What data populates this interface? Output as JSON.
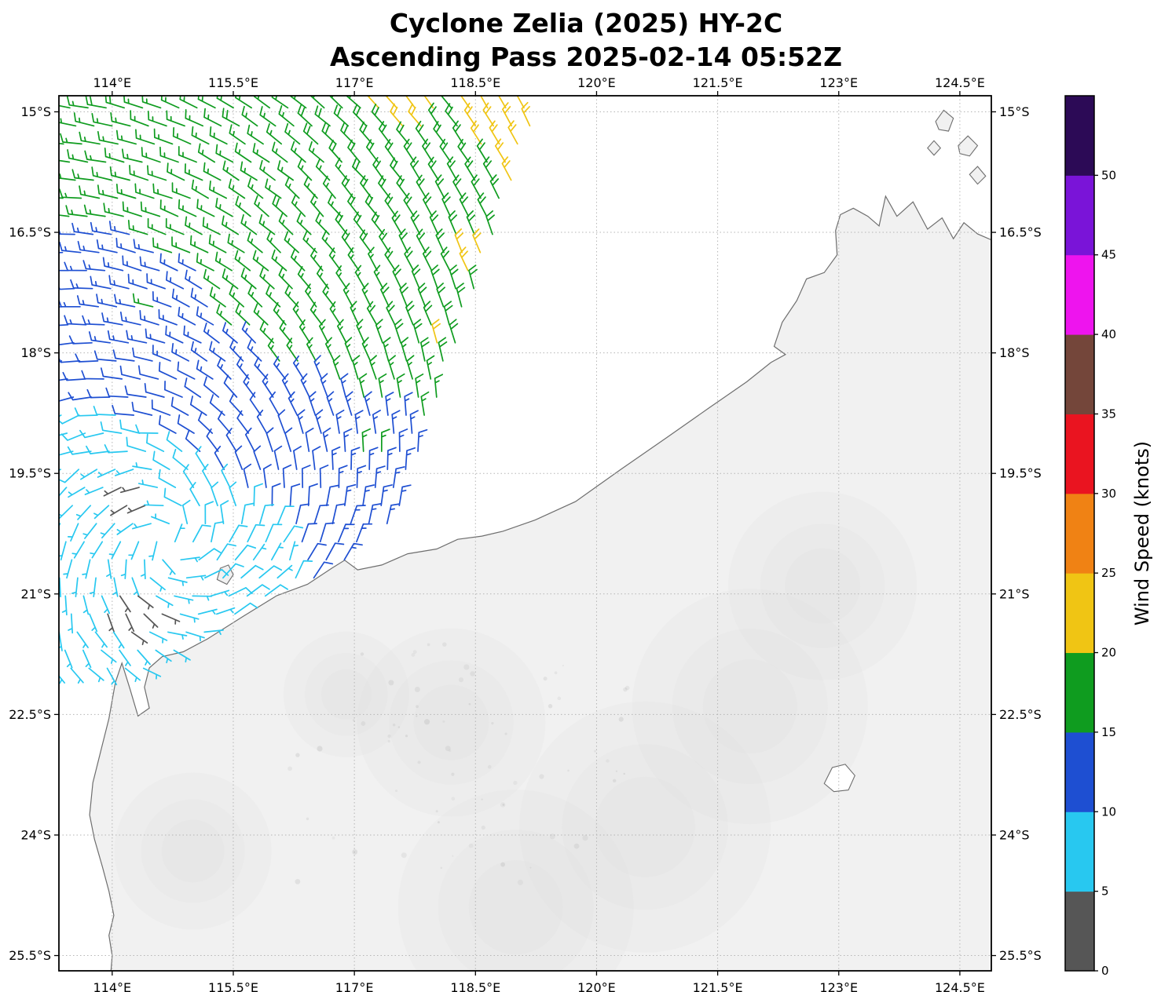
{
  "title": {
    "line1": "Cyclone Zelia (2025) HY-2C",
    "line2": "Ascending Pass 2025-02-14 05:52Z"
  },
  "axes": {
    "lon_range": [
      113.34,
      124.89
    ],
    "lat_range": [
      14.8,
      25.69
    ],
    "lon_ticks": [
      {
        "value": 114.0,
        "label": "114°E"
      },
      {
        "value": 115.5,
        "label": "115.5°E"
      },
      {
        "value": 117.0,
        "label": "117°E"
      },
      {
        "value": 118.5,
        "label": "118.5°E"
      },
      {
        "value": 120.0,
        "label": "120°E"
      },
      {
        "value": 121.5,
        "label": "121.5°E"
      },
      {
        "value": 123.0,
        "label": "123°E"
      },
      {
        "value": 124.5,
        "label": "124.5°E"
      }
    ],
    "lat_ticks": [
      {
        "value": 15.0,
        "label": "15°S"
      },
      {
        "value": 16.5,
        "label": "16.5°S"
      },
      {
        "value": 18.0,
        "label": "18°S"
      },
      {
        "value": 19.5,
        "label": "19.5°S"
      },
      {
        "value": 21.0,
        "label": "21°S"
      },
      {
        "value": 22.5,
        "label": "22.5°S"
      },
      {
        "value": 24.0,
        "label": "24°S"
      },
      {
        "value": 25.5,
        "label": "25.5°S"
      }
    ]
  },
  "colorbar": {
    "label": "Wind Speed (knots)",
    "tick_values": [
      0,
      5,
      10,
      15,
      20,
      25,
      30,
      35,
      40,
      45,
      50
    ],
    "value_max": 55,
    "bands": [
      {
        "min": 0,
        "max": 5,
        "color": "#565656"
      },
      {
        "min": 5,
        "max": 10,
        "color": "#28c8f0"
      },
      {
        "min": 10,
        "max": 15,
        "color": "#1e4fd2"
      },
      {
        "min": 15,
        "max": 20,
        "color": "#0f9c1f"
      },
      {
        "min": 20,
        "max": 25,
        "color": "#f0c514"
      },
      {
        "min": 25,
        "max": 30,
        "color": "#f08214"
      },
      {
        "min": 30,
        "max": 35,
        "color": "#ea1420"
      },
      {
        "min": 35,
        "max": 40,
        "color": "#74463a"
      },
      {
        "min": 40,
        "max": 45,
        "color": "#ee14ee"
      },
      {
        "min": 45,
        "max": 50,
        "color": "#7a14d8"
      },
      {
        "min": 50,
        "max": 55,
        "color": "#2c0a56"
      }
    ]
  },
  "map_colors": {
    "ocean": "#ffffff",
    "land": "#f1f1f1",
    "coast": "#6e6e6e",
    "grid": "#b5b5b5",
    "frame": "#000000"
  },
  "chart_data": {
    "type": "wind_barb_map",
    "speed_units": "knots",
    "swath": {
      "grid_step_deg": 0.225,
      "right_edge_lon_at_14_9S": 119.32,
      "right_edge_slope_lon_per_lat": -0.345,
      "south_limit_lat": 21.95,
      "southeast_cut": {
        "start_lon": 115.3,
        "lat_at_start": 21.9,
        "slope": -0.8
      }
    },
    "vortex": {
      "center_lon": 114.7,
      "center_lat": 20.35,
      "rotation": "clockwise",
      "inflow": 0.38
    },
    "speed_samples_lon_lat_knots": [
      [
        114.0,
        15.0,
        18
      ],
      [
        115.5,
        15.0,
        18
      ],
      [
        116.8,
        14.9,
        19
      ],
      [
        117.6,
        14.9,
        22
      ],
      [
        118.8,
        15.0,
        22
      ],
      [
        119.2,
        16.0,
        22
      ],
      [
        118.4,
        16.8,
        21
      ],
      [
        118.0,
        17.8,
        21
      ],
      [
        113.5,
        16.0,
        17
      ],
      [
        114.8,
        16.2,
        17
      ],
      [
        116.2,
        16.3,
        18
      ],
      [
        117.2,
        16.5,
        19
      ],
      [
        113.5,
        17.3,
        15
      ],
      [
        114.5,
        17.5,
        16
      ],
      [
        115.6,
        17.4,
        17
      ],
      [
        116.6,
        17.3,
        17
      ],
      [
        117.5,
        17.6,
        19
      ],
      [
        113.4,
        18.1,
        12
      ],
      [
        114.3,
        18.3,
        12
      ],
      [
        115.3,
        18.2,
        13
      ],
      [
        116.2,
        18.0,
        16
      ],
      [
        117.0,
        18.2,
        17
      ],
      [
        113.4,
        19.0,
        8
      ],
      [
        114.2,
        19.2,
        9
      ],
      [
        115.2,
        19.0,
        11
      ],
      [
        116.0,
        18.8,
        12
      ],
      [
        116.8,
        18.8,
        14
      ],
      [
        117.2,
        19.3,
        16
      ],
      [
        113.5,
        19.8,
        7
      ],
      [
        114.15,
        19.75,
        3
      ],
      [
        114.3,
        19.8,
        3
      ],
      [
        115.0,
        19.7,
        8
      ],
      [
        115.8,
        19.5,
        11
      ],
      [
        116.5,
        19.6,
        12
      ],
      [
        117.1,
        20.0,
        16
      ],
      [
        113.5,
        20.6,
        7
      ],
      [
        114.3,
        20.6,
        6
      ],
      [
        115.1,
        20.4,
        8
      ],
      [
        115.9,
        20.3,
        9
      ],
      [
        116.0,
        20.52,
        3
      ],
      [
        116.6,
        20.3,
        12
      ],
      [
        117.0,
        20.6,
        15
      ],
      [
        113.6,
        21.3,
        7
      ],
      [
        113.85,
        21.2,
        4
      ],
      [
        114.3,
        21.2,
        2
      ],
      [
        114.45,
        21.3,
        3
      ],
      [
        115.0,
        21.1,
        7
      ],
      [
        115.7,
        20.9,
        8
      ],
      [
        113.8,
        21.7,
        7
      ],
      [
        114.6,
        21.6,
        7
      ]
    ],
    "coastline_lon_lat": [
      [
        124.95,
        16.62
      ],
      [
        124.72,
        16.52
      ],
      [
        124.55,
        16.38
      ],
      [
        124.42,
        16.58
      ],
      [
        124.28,
        16.32
      ],
      [
        124.1,
        16.46
      ],
      [
        123.92,
        16.12
      ],
      [
        123.72,
        16.3
      ],
      [
        123.58,
        16.05
      ],
      [
        123.5,
        16.42
      ],
      [
        123.36,
        16.3
      ],
      [
        123.18,
        16.2
      ],
      [
        123.02,
        16.28
      ],
      [
        122.96,
        16.48
      ],
      [
        122.98,
        16.78
      ],
      [
        122.82,
        17.0
      ],
      [
        122.6,
        17.08
      ],
      [
        122.48,
        17.35
      ],
      [
        122.3,
        17.62
      ],
      [
        122.2,
        17.92
      ],
      [
        122.34,
        18.02
      ],
      [
        122.16,
        18.12
      ],
      [
        121.86,
        18.36
      ],
      [
        121.4,
        18.68
      ],
      [
        120.86,
        19.06
      ],
      [
        120.3,
        19.45
      ],
      [
        119.74,
        19.85
      ],
      [
        119.24,
        20.08
      ],
      [
        118.84,
        20.22
      ],
      [
        118.58,
        20.28
      ],
      [
        118.28,
        20.32
      ],
      [
        118.02,
        20.44
      ],
      [
        117.66,
        20.5
      ],
      [
        117.34,
        20.64
      ],
      [
        117.04,
        20.7
      ],
      [
        116.88,
        20.58
      ],
      [
        116.72,
        20.68
      ],
      [
        116.42,
        20.88
      ],
      [
        116.04,
        21.02
      ],
      [
        115.62,
        21.28
      ],
      [
        115.18,
        21.56
      ],
      [
        114.88,
        21.72
      ],
      [
        114.62,
        21.78
      ],
      [
        114.46,
        21.92
      ],
      [
        114.4,
        22.16
      ],
      [
        114.46,
        22.42
      ],
      [
        114.32,
        22.52
      ],
      [
        114.22,
        22.18
      ],
      [
        114.12,
        21.86
      ],
      [
        114.04,
        22.1
      ],
      [
        113.96,
        22.55
      ],
      [
        113.86,
        22.95
      ],
      [
        113.76,
        23.35
      ],
      [
        113.72,
        23.75
      ],
      [
        113.78,
        24.05
      ],
      [
        113.88,
        24.4
      ],
      [
        113.96,
        24.7
      ],
      [
        114.02,
        25.0
      ],
      [
        113.96,
        25.25
      ],
      [
        114.0,
        25.5
      ],
      [
        113.98,
        25.75
      ]
    ],
    "islands": [
      [
        [
          124.2,
          15.12
        ],
        [
          124.3,
          14.98
        ],
        [
          124.42,
          15.08
        ],
        [
          124.36,
          15.24
        ],
        [
          124.24,
          15.22
        ]
      ],
      [
        [
          124.48,
          15.42
        ],
        [
          124.6,
          15.3
        ],
        [
          124.72,
          15.42
        ],
        [
          124.62,
          15.55
        ],
        [
          124.5,
          15.52
        ]
      ],
      [
        [
          124.1,
          15.45
        ],
        [
          124.18,
          15.36
        ],
        [
          124.26,
          15.45
        ],
        [
          124.18,
          15.54
        ]
      ],
      [
        [
          124.62,
          15.78
        ],
        [
          124.72,
          15.68
        ],
        [
          124.82,
          15.8
        ],
        [
          124.72,
          15.9
        ]
      ],
      [
        [
          115.3,
          20.82
        ],
        [
          115.34,
          20.68
        ],
        [
          115.44,
          20.64
        ],
        [
          115.5,
          20.76
        ],
        [
          115.42,
          20.88
        ]
      ]
    ],
    "lakes": [
      [
        [
          122.82,
          23.36
        ],
        [
          122.92,
          23.16
        ],
        [
          123.08,
          23.12
        ],
        [
          123.2,
          23.26
        ],
        [
          123.12,
          23.44
        ],
        [
          122.94,
          23.46
        ]
      ]
    ]
  }
}
